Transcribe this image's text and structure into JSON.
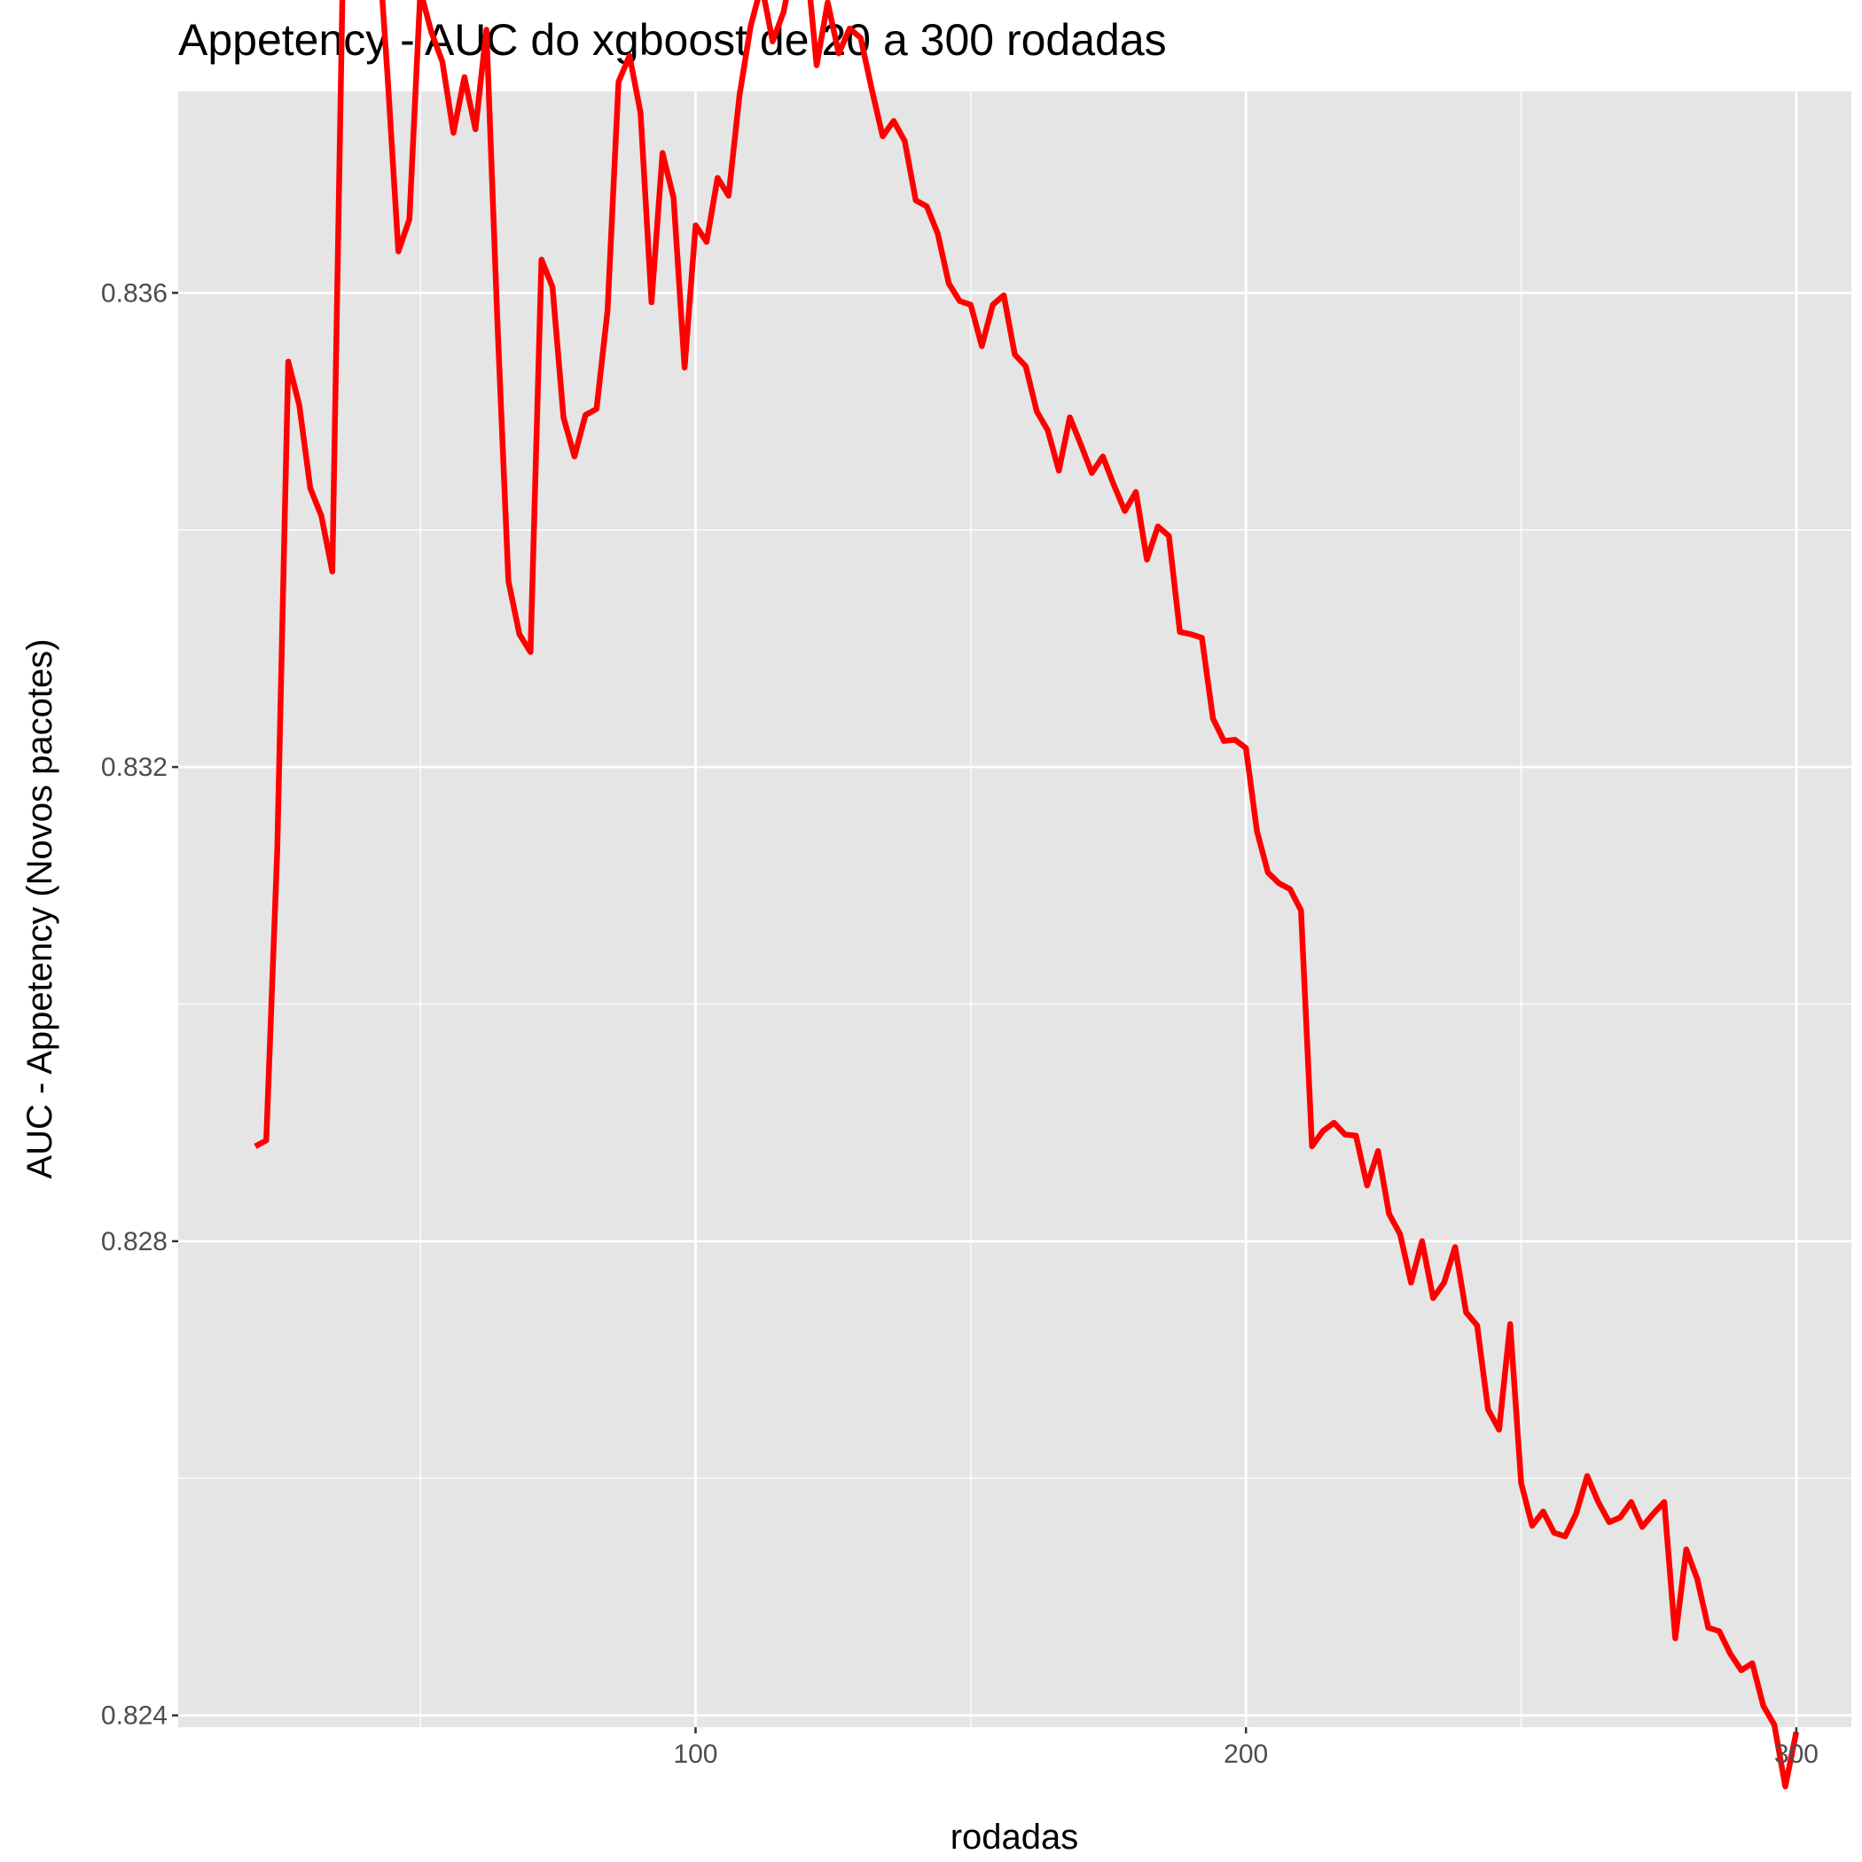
{
  "chart_data": {
    "type": "line",
    "title": "Appetency - AUC do xgboost de 20 a 300 rodadas",
    "xlabel": "rodadas",
    "ylabel": "AUC - Appetency (Novos pacotes)",
    "xlim": [
      6,
      310
    ],
    "ylim": [
      0.8239,
      0.8377
    ],
    "x_ticks": [
      100,
      200,
      300
    ],
    "x_tick_labels": [
      "100",
      "200",
      "300"
    ],
    "y_ticks": [
      0.824,
      0.828,
      0.832,
      0.836
    ],
    "y_tick_labels": [
      "0.824",
      "0.828",
      "0.832",
      "0.836"
    ],
    "grid": true,
    "legend": "none",
    "background_color": "#e5e5e5",
    "grid_color": "#ffffff",
    "series": [
      {
        "color": "#ff0000",
        "x": [
          20,
          22,
          24,
          26,
          28,
          30,
          32,
          34,
          36,
          38,
          40,
          42,
          44,
          46,
          48,
          50,
          52,
          54,
          56,
          58,
          60,
          62,
          64,
          66,
          68,
          70,
          72,
          74,
          76,
          78,
          80,
          82,
          84,
          86,
          88,
          90,
          92,
          94,
          96,
          98,
          100,
          102,
          104,
          106,
          108,
          110,
          112,
          114,
          116,
          118,
          120,
          122,
          124,
          126,
          128,
          130,
          132,
          134,
          136,
          138,
          140,
          142,
          144,
          146,
          148,
          150,
          152,
          154,
          156,
          158,
          160,
          162,
          164,
          166,
          168,
          170,
          172,
          174,
          176,
          178,
          180,
          182,
          184,
          186,
          188,
          190,
          192,
          194,
          196,
          198,
          200,
          202,
          204,
          206,
          208,
          210,
          212,
          214,
          216,
          218,
          220,
          222,
          224,
          226,
          228,
          230,
          232,
          234,
          236,
          238,
          240,
          242,
          244,
          246,
          248,
          250,
          252,
          254,
          256,
          258,
          260,
          262,
          264,
          266,
          268,
          270,
          272,
          274,
          276,
          278,
          280,
          282,
          284,
          286,
          288,
          290,
          292,
          294,
          296,
          298,
          300
        ],
        "y": [
          0.8288,
          0.82885,
          0.8313,
          0.83542,
          0.83505,
          0.83435,
          0.83412,
          0.83365,
          0.83895,
          0.83932,
          0.83925,
          0.83922,
          0.83785,
          0.83635,
          0.83662,
          0.83855,
          0.8382,
          0.83795,
          0.83735,
          0.83782,
          0.83738,
          0.83822,
          0.83575,
          0.83357,
          0.83312,
          0.83297,
          0.83628,
          0.83605,
          0.83495,
          0.83462,
          0.83497,
          0.83502,
          0.83585,
          0.83778,
          0.838,
          0.83752,
          0.83592,
          0.83718,
          0.8368,
          0.83537,
          0.83657,
          0.83643,
          0.83697,
          0.83682,
          0.83767,
          0.83825,
          0.8386,
          0.83812,
          0.83837,
          0.83885,
          0.8389,
          0.83792,
          0.83845,
          0.83802,
          0.83823,
          0.83815,
          0.83772,
          0.83732,
          0.83745,
          0.83728,
          0.83678,
          0.83673,
          0.8365,
          0.83608,
          0.83593,
          0.8359,
          0.83555,
          0.8359,
          0.83598,
          0.83548,
          0.83538,
          0.835,
          0.83484,
          0.8345,
          0.83495,
          0.83472,
          0.83448,
          0.83462,
          0.83438,
          0.83416,
          0.83432,
          0.83375,
          0.83403,
          0.83395,
          0.83314,
          0.83312,
          0.83309,
          0.83241,
          0.83222,
          0.83223,
          0.83216,
          0.83146,
          0.83111,
          0.83102,
          0.83097,
          0.83079,
          0.8288,
          0.82893,
          0.829,
          0.8289,
          0.82889,
          0.82847,
          0.82876,
          0.82823,
          0.82806,
          0.82765,
          0.828,
          0.82752,
          0.82765,
          0.82795,
          0.8274,
          0.82729,
          0.82658,
          0.82641,
          0.8273,
          0.82596,
          0.8256,
          0.82572,
          0.82554,
          0.82551,
          0.8257,
          0.82602,
          0.8258,
          0.82563,
          0.82567,
          0.8258,
          0.82559,
          0.8257,
          0.8258,
          0.82465,
          0.8254,
          0.82515,
          0.82474,
          0.82471,
          0.82452,
          0.82438,
          0.82444,
          0.82408,
          0.82392,
          0.8234,
          0.82386
        ]
      }
    ]
  }
}
